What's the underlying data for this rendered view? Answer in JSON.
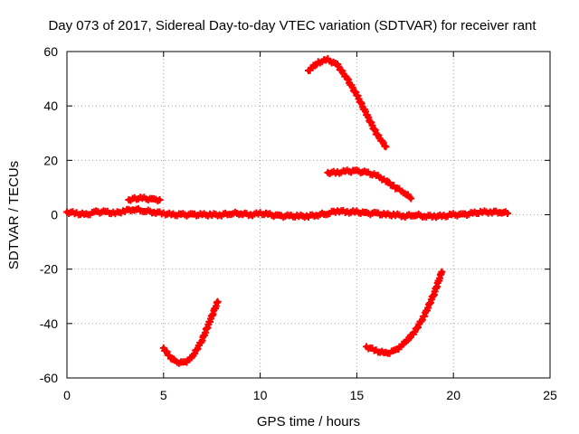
{
  "chart_data": {
    "type": "scatter",
    "title": "Day 073 of 2017, Sidereal Day-to-day VTEC variation (SDTVAR) for receiver rant",
    "xlabel": "GPS time / hours",
    "ylabel": "SDTVAR / TECUs",
    "xlim": [
      0,
      25
    ],
    "ylim": [
      -60,
      60
    ],
    "xticks": [
      0,
      5,
      10,
      15,
      20,
      25
    ],
    "yticks": [
      -60,
      -40,
      -20,
      0,
      20,
      40,
      60
    ],
    "xtick_labels": [
      "0",
      "5",
      "10",
      "15",
      "20",
      "25"
    ],
    "ytick_labels": [
      "-60",
      "-40",
      "-20",
      "0",
      "20",
      "40",
      "60"
    ],
    "grid": true,
    "marker_color": "#ff0000",
    "series": [
      {
        "name": "baseline",
        "x": [
          0,
          0.5,
          1,
          1.5,
          2,
          2.5,
          3,
          3.5,
          4,
          4.5,
          5,
          5.5,
          6,
          6.5,
          7,
          7.5,
          8,
          8.5,
          9,
          9.5,
          10,
          10.5,
          11,
          11.5,
          12,
          12.5,
          13,
          13.5,
          14,
          14.5,
          15,
          15.5,
          16,
          16.5,
          17,
          17.5,
          18,
          18.5,
          19,
          19.5,
          20,
          20.5,
          21,
          21.5,
          22,
          22.5,
          22.8
        ],
        "y": [
          1,
          0.5,
          0,
          1,
          1,
          0.5,
          1.5,
          2,
          1.5,
          1,
          0.5,
          0,
          0,
          0,
          0,
          0,
          0,
          0.5,
          0.5,
          0,
          0.5,
          0,
          -0.5,
          -0.5,
          -0.5,
          -0.5,
          0,
          0.5,
          1.5,
          1,
          1,
          0.5,
          0.5,
          0,
          0,
          -0.5,
          0,
          -0.5,
          -0.5,
          -0.5,
          0,
          0,
          0.5,
          1,
          1,
          1,
          0.5
        ]
      },
      {
        "name": "arc-morning-high",
        "x": [
          3.2,
          3.5,
          4,
          4.5,
          4.8
        ],
        "y": [
          5.5,
          6,
          6,
          5.5,
          5.5
        ]
      },
      {
        "name": "arc-morning-low",
        "x": [
          5,
          5.3,
          5.6,
          6,
          6.3,
          6.6,
          7,
          7.4,
          7.8
        ],
        "y": [
          -49,
          -52,
          -54,
          -54.5,
          -53.5,
          -51,
          -46,
          -39,
          -32
        ]
      },
      {
        "name": "arc-afternoon-peak",
        "x": [
          12.5,
          13,
          13.5,
          14,
          14.5,
          15,
          15.5,
          16,
          16.5
        ],
        "y": [
          53,
          56,
          57,
          55,
          50,
          44,
          37,
          30,
          25
        ]
      },
      {
        "name": "arc-afternoon-mid",
        "x": [
          13.5,
          14,
          14.5,
          15,
          15.5,
          16,
          16.5,
          17,
          17.5,
          17.8
        ],
        "y": [
          15.5,
          15.5,
          16,
          16,
          15.5,
          14.5,
          12.5,
          10,
          8,
          6
        ]
      },
      {
        "name": "arc-afternoon-low",
        "x": [
          15.5,
          16,
          16.5,
          17,
          17.5,
          18,
          18.5,
          19,
          19.4
        ],
        "y": [
          -48.5,
          -50,
          -51,
          -50,
          -47,
          -43,
          -37,
          -29,
          -21
        ]
      }
    ]
  }
}
